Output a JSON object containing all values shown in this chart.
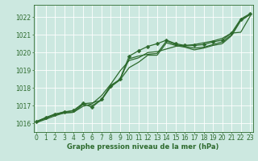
{
  "background_color": "#cce8e0",
  "plot_bg_color": "#cce8e0",
  "grid_color": "#ffffff",
  "line_color": "#2d6a2d",
  "text_color": "#2d6a2d",
  "title": "Graphe pression niveau de la mer (hPa)",
  "xlabel_hours": [
    0,
    1,
    2,
    3,
    4,
    5,
    6,
    7,
    8,
    9,
    10,
    11,
    12,
    13,
    14,
    15,
    16,
    17,
    18,
    19,
    20,
    21,
    22,
    23
  ],
  "yticks": [
    1016,
    1017,
    1018,
    1019,
    1020,
    1021,
    1022
  ],
  "ylim": [
    1015.5,
    1022.7
  ],
  "xlim": [
    -0.3,
    23.3
  ],
  "series": [
    [
      1016.1,
      1016.3,
      1016.5,
      1016.65,
      1016.7,
      1017.1,
      1017.15,
      1017.3,
      1018.15,
      1018.45,
      1019.65,
      1019.8,
      1019.9,
      1019.95,
      1020.65,
      1020.45,
      1020.35,
      1020.25,
      1020.3,
      1020.45,
      1020.6,
      1021.0,
      1021.85,
      1022.15
    ],
    [
      1016.05,
      1016.28,
      1016.48,
      1016.58,
      1016.62,
      1017.05,
      1017.0,
      1017.3,
      1018.05,
      1018.45,
      1019.15,
      1019.45,
      1019.85,
      1019.85,
      1020.55,
      1020.4,
      1020.3,
      1020.15,
      1020.25,
      1020.4,
      1020.5,
      1020.95,
      1021.8,
      1022.15
    ],
    [
      1016.08,
      1016.32,
      1016.52,
      1016.62,
      1016.72,
      1017.12,
      1016.9,
      1017.35,
      1018.1,
      1018.5,
      1019.8,
      1020.1,
      1020.35,
      1020.5,
      1020.7,
      1020.5,
      1020.4,
      1020.4,
      1020.45,
      1020.6,
      1020.7,
      1021.1,
      1021.9,
      1022.2
    ],
    [
      1016.03,
      1016.22,
      1016.42,
      1016.58,
      1016.62,
      1016.95,
      1017.1,
      1017.55,
      1018.2,
      1018.95,
      1019.55,
      1019.7,
      1020.0,
      1020.05,
      1020.2,
      1020.35,
      1020.4,
      1020.45,
      1020.55,
      1020.65,
      1020.8,
      1021.1,
      1021.15,
      1022.05
    ]
  ],
  "marker_series": 2,
  "marker": "D",
  "markersize": 2.5,
  "linewidth": 0.9,
  "tick_fontsize": 5.5,
  "title_fontsize": 6.0
}
